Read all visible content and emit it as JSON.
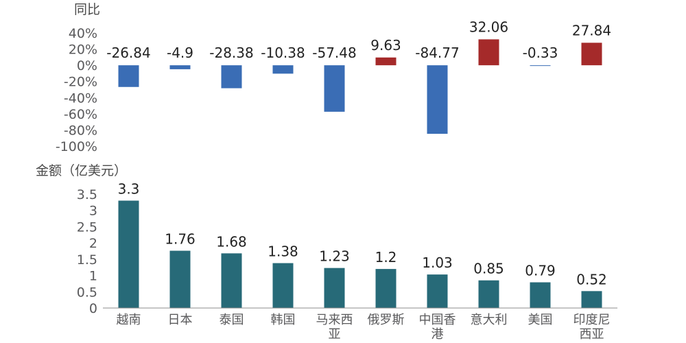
{
  "chart_data": [
    {
      "type": "bar",
      "ylabel": "同比",
      "categories": [
        "越南",
        "日本",
        "泰国",
        "韩国",
        "马来西亚",
        "俄罗斯",
        "中国香港",
        "意大利",
        "美国",
        "印度尼西亚"
      ],
      "values": [
        -26.84,
        -4.9,
        -28.38,
        -10.38,
        -57.48,
        9.63,
        -84.77,
        32.06,
        -0.33,
        27.84
      ],
      "ylim": [
        -100,
        40
      ],
      "yticks": [
        40,
        20,
        0,
        -20,
        -40,
        -60,
        -80,
        -100
      ],
      "ytick_labels": [
        "40%",
        "20%",
        "0%",
        "-20%",
        "-40%",
        "-60%",
        "-80%",
        "-100%"
      ],
      "colors": {
        "positive": "#a52a2a",
        "negative": "#3a6db5"
      },
      "grid": false
    },
    {
      "type": "bar",
      "ylabel": "金额（亿美元）",
      "categories": [
        "越南",
        "日本",
        "泰国",
        "韩国",
        "马来西亚",
        "俄罗斯",
        "中国香港",
        "意大利",
        "美国",
        "印度尼西亚"
      ],
      "category_lines": [
        [
          "越南"
        ],
        [
          "日本"
        ],
        [
          "泰国"
        ],
        [
          "韩国"
        ],
        [
          "马来西",
          "亚"
        ],
        [
          "俄罗斯"
        ],
        [
          "中国香",
          "港"
        ],
        [
          "意大利"
        ],
        [
          "美国"
        ],
        [
          "印度尼",
          "西亚"
        ]
      ],
      "values": [
        3.3,
        1.76,
        1.68,
        1.38,
        1.23,
        1.2,
        1.03,
        0.85,
        0.79,
        0.52
      ],
      "ylim": [
        0,
        3.5
      ],
      "yticks": [
        0,
        0.5,
        1,
        1.5,
        2,
        2.5,
        3,
        3.5
      ],
      "ytick_labels": [
        "0",
        "0.5",
        "1",
        "1.5",
        "2",
        "2.5",
        "3",
        "3.5"
      ],
      "colors": {
        "bar": "#276a78"
      },
      "grid": false
    }
  ]
}
